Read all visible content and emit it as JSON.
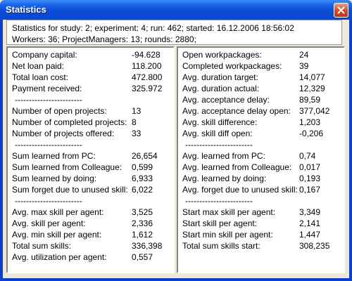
{
  "window": {
    "title": "Statistics"
  },
  "header": {
    "line1": "Statistics for study: 2; experiment: 4; run: 462; started: 16.12.2006 18:56:02",
    "line2": "Workers: 36; ProjectManagers: 13; rounds: 2880;"
  },
  "separator": "------------------------",
  "left": {
    "g1": [
      {
        "label": "Company capital:",
        "value": "-94.628"
      },
      {
        "label": "Net loan paid:",
        "value": "118.200"
      },
      {
        "label": "Total loan cost:",
        "value": "472.800"
      },
      {
        "label": "Payment received:",
        "value": "325.972"
      }
    ],
    "g2": [
      {
        "label": "Number of open projects:",
        "value": "13"
      },
      {
        "label": "Number of completed projects:",
        "value": "8"
      },
      {
        "label": "Number of projects offered:",
        "value": "33"
      }
    ],
    "g3": [
      {
        "label": "Sum learned from PC:",
        "value": "26,654"
      },
      {
        "label": "Sum learned from Colleague:",
        "value": "0,599"
      },
      {
        "label": "Sum learned by doing:",
        "value": "6,933"
      },
      {
        "label": "Sum forget due to unused skill:",
        "value": "6,022"
      }
    ],
    "g4": [
      {
        "label": "Avg. max skill per agent:",
        "value": "3,525"
      },
      {
        "label": "Avg. skill per agent:",
        "value": "2,336"
      },
      {
        "label": "Avg. min skill per agent:",
        "value": "1,612"
      },
      {
        "label": "Total sum skills:",
        "value": "336,398"
      },
      {
        "label": "Avg. utilization per agent:",
        "value": "0,557"
      }
    ]
  },
  "right": {
    "g1": [
      {
        "label": "Open workpackages:",
        "value": "24"
      },
      {
        "label": "Completed workpackages:",
        "value": "39"
      },
      {
        "label": "Avg. duration target:",
        "value": "14,077"
      },
      {
        "label": "Avg. duration actual:",
        "value": "12,329"
      },
      {
        "label": "Avg. acceptance delay:",
        "value": "89,59"
      },
      {
        "label": "Avg. acceptance delay open:",
        "value": "377,042"
      },
      {
        "label": "Avg. skill difference:",
        "value": "1,203"
      },
      {
        "label": "Avg. skill diff open:",
        "value": "-0,206"
      }
    ],
    "g2": [
      {
        "label": "Avg. learned from PC:",
        "value": "0,74"
      },
      {
        "label": "Avg. learned from Colleague:",
        "value": "0,017"
      },
      {
        "label": "Avg. learned by doing:",
        "value": "0,193"
      },
      {
        "label": "Avg. forget due to unused skill:",
        "value": "0,167"
      }
    ],
    "g3": [
      {
        "label": "Start max skill per agent:",
        "value": "3,349"
      },
      {
        "label": "Start skill per agent:",
        "value": "2,141"
      },
      {
        "label": "Start min skill per agent:",
        "value": "1,447"
      },
      {
        "label": "Total sum skills start:",
        "value": "308,235"
      }
    ]
  }
}
